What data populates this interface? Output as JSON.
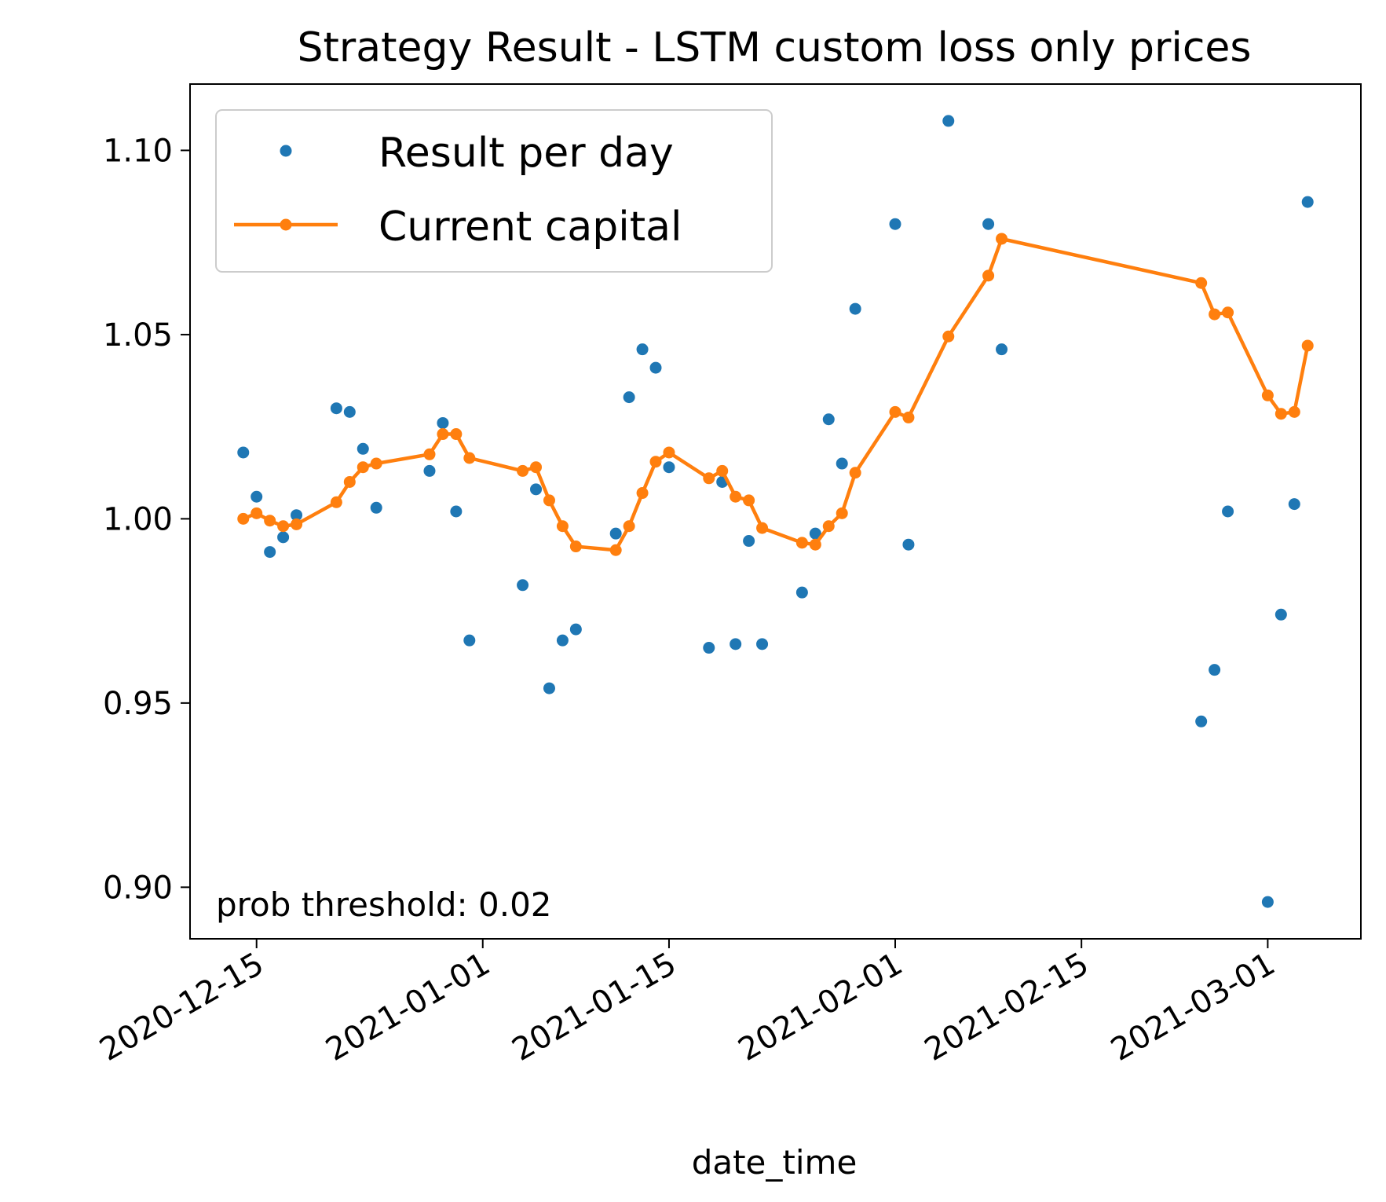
{
  "chart_data": {
    "type": "line",
    "title": "Strategy Result - LSTM custom loss only prices",
    "xlabel": "date_time",
    "ylabel": "",
    "x_ticks": [
      "2020-12-15",
      "2021-01-01",
      "2021-01-15",
      "2021-02-01",
      "2021-02-15",
      "2021-03-01"
    ],
    "y_ticks": [
      "0.90",
      "0.95",
      "1.00",
      "1.05",
      "1.10"
    ],
    "xlim": [
      "2020-12-10",
      "2021-03-08"
    ],
    "ylim": [
      0.886,
      1.118
    ],
    "grid": false,
    "legend_position": "top-left",
    "annotation": "prob threshold: 0.02",
    "colors": {
      "scatter": "#1f77b4",
      "line": "#ff7f0e"
    },
    "series": [
      {
        "name": "Result per day",
        "kind": "scatter",
        "x": [
          "2020-12-14",
          "2020-12-15",
          "2020-12-16",
          "2020-12-17",
          "2020-12-18",
          "2020-12-21",
          "2020-12-22",
          "2020-12-23",
          "2020-12-24",
          "2020-12-28",
          "2020-12-29",
          "2020-12-30",
          "2020-12-31",
          "2021-01-04",
          "2021-01-05",
          "2021-01-06",
          "2021-01-07",
          "2021-01-08",
          "2021-01-11",
          "2021-01-12",
          "2021-01-13",
          "2021-01-14",
          "2021-01-15",
          "2021-01-18",
          "2021-01-19",
          "2021-01-20",
          "2021-01-21",
          "2021-01-22",
          "2021-01-25",
          "2021-01-26",
          "2021-01-27",
          "2021-01-28",
          "2021-01-29",
          "2021-02-01",
          "2021-02-02",
          "2021-02-05",
          "2021-02-08",
          "2021-02-09",
          "2021-02-24",
          "2021-02-25",
          "2021-02-26",
          "2021-03-01",
          "2021-03-02",
          "2021-03-03",
          "2021-03-04"
        ],
        "y": [
          1.018,
          1.006,
          0.991,
          0.995,
          1.001,
          1.03,
          1.029,
          1.019,
          1.003,
          1.013,
          1.026,
          1.002,
          0.967,
          0.982,
          1.008,
          0.954,
          0.967,
          0.97,
          0.996,
          1.033,
          1.046,
          1.041,
          1.014,
          0.965,
          1.01,
          0.966,
          0.994,
          0.966,
          0.98,
          0.996,
          1.027,
          1.015,
          1.057,
          1.08,
          0.993,
          1.108,
          1.08,
          1.046,
          0.945,
          0.959,
          1.002,
          0.896,
          0.974,
          1.004,
          1.086
        ]
      },
      {
        "name": "Current capital",
        "kind": "line",
        "x": [
          "2020-12-14",
          "2020-12-15",
          "2020-12-16",
          "2020-12-17",
          "2020-12-18",
          "2020-12-21",
          "2020-12-22",
          "2020-12-23",
          "2020-12-24",
          "2020-12-28",
          "2020-12-29",
          "2020-12-30",
          "2020-12-31",
          "2021-01-04",
          "2021-01-05",
          "2021-01-06",
          "2021-01-07",
          "2021-01-08",
          "2021-01-11",
          "2021-01-12",
          "2021-01-13",
          "2021-01-14",
          "2021-01-15",
          "2021-01-18",
          "2021-01-19",
          "2021-01-20",
          "2021-01-21",
          "2021-01-22",
          "2021-01-25",
          "2021-01-26",
          "2021-01-27",
          "2021-01-28",
          "2021-01-29",
          "2021-02-01",
          "2021-02-02",
          "2021-02-05",
          "2021-02-08",
          "2021-02-09",
          "2021-02-24",
          "2021-02-25",
          "2021-02-26",
          "2021-03-01",
          "2021-03-02",
          "2021-03-03",
          "2021-03-04"
        ],
        "y": [
          1.0,
          1.0015,
          0.9995,
          0.998,
          0.9985,
          1.0045,
          1.01,
          1.014,
          1.015,
          1.0175,
          1.023,
          1.023,
          1.0165,
          1.013,
          1.014,
          1.005,
          0.998,
          0.9925,
          0.9915,
          0.998,
          1.007,
          1.0155,
          1.018,
          1.011,
          1.013,
          1.006,
          1.005,
          0.9975,
          0.9935,
          0.993,
          0.998,
          1.0015,
          1.0125,
          1.029,
          1.0275,
          1.0495,
          1.066,
          1.076,
          1.064,
          1.0555,
          1.056,
          1.0335,
          1.0285,
          1.029,
          1.047
        ]
      }
    ]
  }
}
